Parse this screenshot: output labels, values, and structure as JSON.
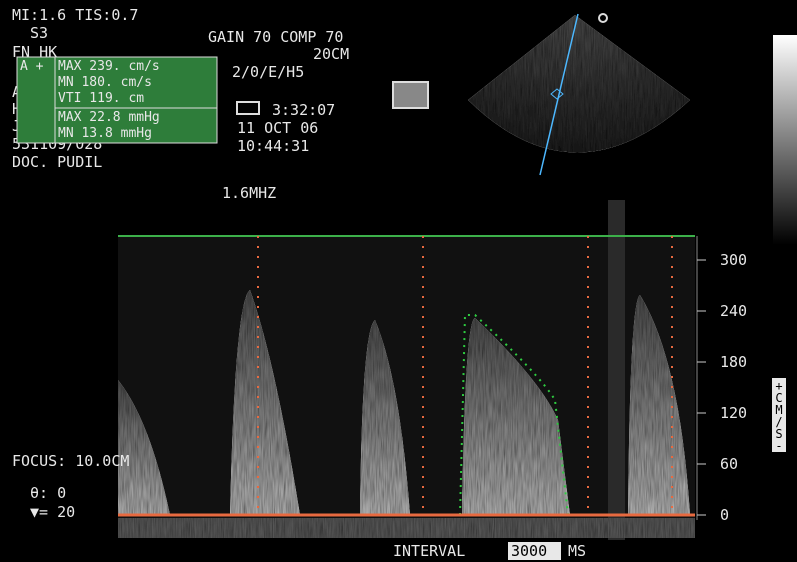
{
  "header": {
    "mi_tis": "MI:1.6 TIS:0.7",
    "probe": "S3",
    "fn": "FN HK",
    "gain_comp": "GAIN 70 COMP 70",
    "depth": "20CM",
    "settings": "2/0/E/H5",
    "frequency": "1.6MHZ"
  },
  "patient": {
    "lines": [
      "Adu",
      "HAZ",
      "JAR",
      "531109/028",
      "DOC. PUDIL"
    ]
  },
  "measurements": {
    "tag": "A +",
    "rows": [
      "MAX 239. cm/s",
      "MN 180. cm/s",
      "VTI 119. cm",
      "MAX 22.8 mmHg",
      "MN 13.8 mmHg"
    ]
  },
  "clock": {
    "elapsed": "3:32:07",
    "date": "11 OCT 06",
    "time": "10:44:31"
  },
  "doppler": {
    "focus": "FOCUS: 10.0CM",
    "angle": "θ: 0",
    "filter": "▼= 20",
    "unit": "+CM/S-",
    "ticks": [
      300,
      240,
      180,
      120,
      60,
      0
    ]
  },
  "footer": {
    "interval": "INTERVAL",
    "interval_value": "3000",
    "interval_unit": "MS"
  }
}
